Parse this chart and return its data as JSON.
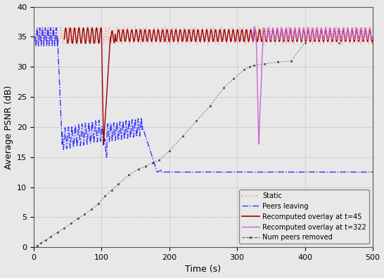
{
  "title": "",
  "xlabel": "Time (s)",
  "ylabel": "Average PSNR (dB)",
  "xlim": [
    0,
    500
  ],
  "ylim": [
    0,
    40
  ],
  "yticks": [
    0,
    5,
    10,
    15,
    20,
    25,
    30,
    35,
    40
  ],
  "xticks": [
    0,
    100,
    200,
    300,
    400,
    500
  ],
  "static_color": "#ff8888",
  "peers_leaving_color": "#3333ff",
  "recomputed_t45_color": "#990000",
  "recomputed_t322_color": "#cc66cc",
  "num_peers_color": "#555555",
  "bg_color": "#e8e8e8",
  "grid_color": "#aaaaaa",
  "figsize": [
    5.46,
    3.96
  ],
  "dpi": 100
}
